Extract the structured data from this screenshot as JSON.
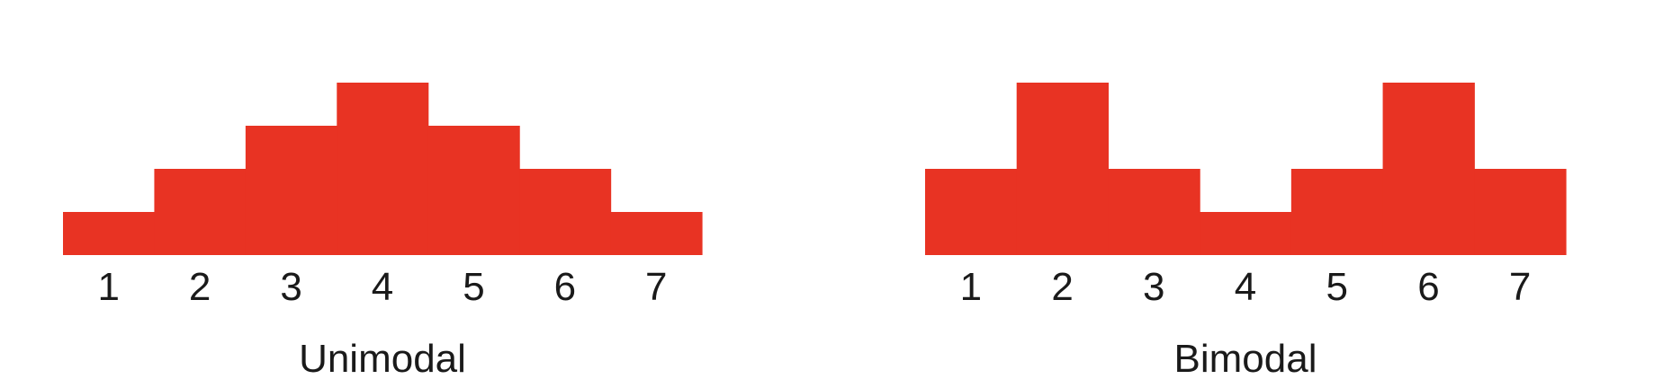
{
  "chart_data": [
    {
      "type": "bar",
      "categories": [
        "1",
        "2",
        "3",
        "4",
        "5",
        "6",
        "7"
      ],
      "values": [
        1,
        2,
        3,
        4,
        3,
        2,
        1
      ],
      "title": "",
      "xlabel": "Unimodal",
      "ylabel": "",
      "ylim": [
        0,
        4
      ],
      "grid": false,
      "legend": "none",
      "color": "#e83323"
    },
    {
      "type": "bar",
      "categories": [
        "1",
        "2",
        "3",
        "4",
        "5",
        "6",
        "7"
      ],
      "values": [
        2,
        4,
        2,
        1,
        2,
        4,
        2
      ],
      "title": "",
      "xlabel": "Bimodal",
      "ylabel": "",
      "ylim": [
        0,
        4
      ],
      "grid": false,
      "legend": "none",
      "color": "#e83323"
    }
  ]
}
